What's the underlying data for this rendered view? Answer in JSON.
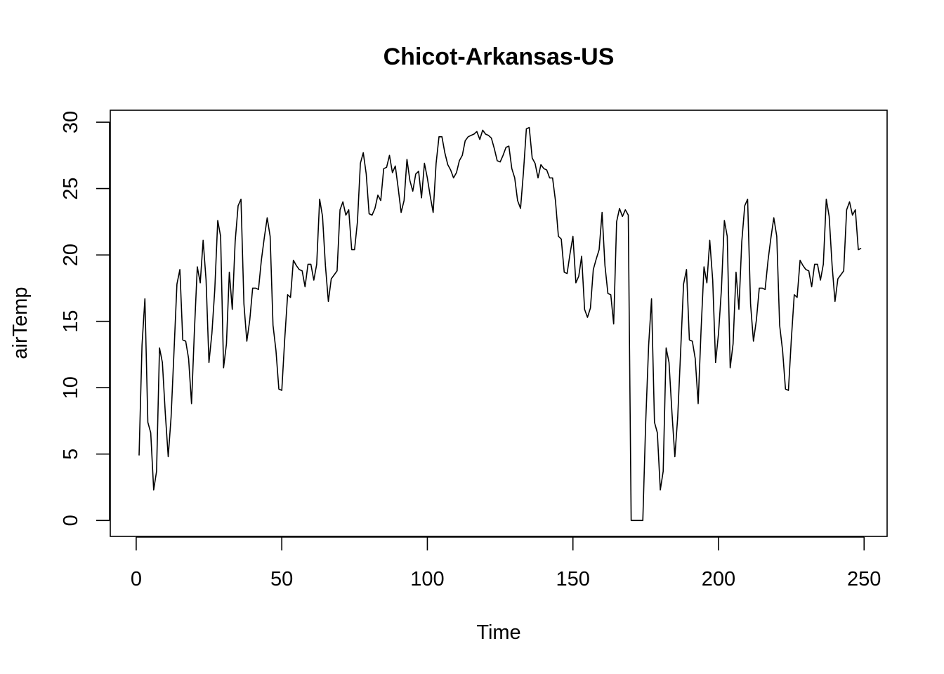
{
  "chart_data": {
    "type": "line",
    "title": "Chicot-Arkansas-US",
    "xlabel": "Time",
    "ylabel": "airTemp",
    "xlim": [
      -8.9,
      257.9
    ],
    "ylim": [
      -1.2,
      30.9
    ],
    "xticks": [
      0,
      50,
      100,
      150,
      200,
      250
    ],
    "yticks": [
      0,
      5,
      10,
      15,
      20,
      25,
      30
    ],
    "grid": false,
    "legend": "none",
    "line_color": "#000000",
    "series": [
      {
        "x_start": 1,
        "values": [
          4.9,
          13.2,
          16.7,
          7.4,
          6.6,
          2.3,
          3.7,
          13.0,
          11.9,
          8.1,
          4.8,
          7.8,
          12.8,
          17.8,
          18.9,
          13.6,
          13.5,
          12.2,
          8.8,
          14.3,
          19.1,
          17.9,
          21.1,
          18.1,
          11.9,
          14.1,
          17.4,
          22.6,
          21.4,
          11.5,
          13.3,
          18.7,
          15.9,
          21.0,
          23.7,
          24.2,
          16.3,
          13.5,
          15.1,
          17.5,
          17.5,
          17.4,
          19.6,
          21.3,
          22.8,
          21.4,
          14.7,
          12.8,
          9.9,
          9.8,
          13.6,
          17.0,
          16.8,
          19.6,
          19.2,
          18.9,
          18.8,
          17.6,
          19.3,
          19.3,
          18.1,
          19.3,
          24.2,
          22.9,
          19.2,
          16.5,
          18.2,
          18.5,
          18.8,
          23.4,
          24.0,
          23.0,
          23.4,
          20.4,
          20.4,
          22.5,
          26.9,
          27.7,
          26.1,
          23.1,
          23.0,
          23.5,
          24.5,
          24.1,
          26.5,
          26.6,
          27.5,
          26.2,
          26.7,
          25.0,
          23.2,
          24.1,
          27.2,
          25.6,
          24.8,
          26.1,
          26.3,
          24.3,
          26.9,
          25.8,
          24.4,
          23.2,
          26.9,
          28.9,
          28.9,
          27.7,
          26.8,
          26.4,
          25.8,
          26.2,
          27.1,
          27.5,
          28.6,
          28.9,
          29.0,
          29.1,
          29.3,
          28.7,
          29.4,
          29.1,
          29.0,
          28.8,
          28.0,
          27.1,
          27.0,
          27.5,
          28.1,
          28.2,
          26.5,
          25.8,
          24.1,
          23.5,
          26.2,
          29.5,
          29.6,
          27.3,
          26.9,
          25.8,
          26.8,
          26.5,
          26.4,
          25.8,
          25.8,
          24.1,
          21.4,
          21.2,
          18.7,
          18.6,
          20.1,
          21.4,
          17.9,
          18.4,
          19.9,
          15.9,
          15.3,
          16.0,
          18.9,
          19.7,
          20.4,
          23.2,
          19.2,
          17.1,
          17.0,
          14.8,
          22.5,
          23.5,
          22.9,
          23.4,
          23.0,
          0.0,
          0.0,
          0.0,
          0.0,
          0.0,
          7.4,
          13.2,
          16.7,
          7.4,
          6.6,
          2.3,
          3.7,
          13.0,
          11.9,
          8.1,
          4.8,
          7.8,
          12.8,
          17.8,
          18.9,
          13.6,
          13.5,
          12.2,
          8.8,
          14.3,
          19.1,
          17.9,
          21.1,
          18.1,
          11.9,
          14.1,
          17.4,
          22.6,
          21.4,
          11.5,
          13.3,
          18.7,
          15.9,
          21.0,
          23.7,
          24.2,
          16.3,
          13.5,
          15.1,
          17.5,
          17.5,
          17.4,
          19.6,
          21.3,
          22.8,
          21.4,
          14.7,
          12.8,
          9.9,
          9.8,
          13.6,
          17.0,
          16.8,
          19.6,
          19.2,
          18.9,
          18.8,
          17.6,
          19.3,
          19.3,
          18.1,
          19.3,
          24.2,
          22.9,
          19.2,
          16.5,
          18.2,
          18.5,
          18.8,
          23.4,
          24.0,
          23.0,
          23.4,
          20.4,
          20.5
        ]
      }
    ]
  }
}
